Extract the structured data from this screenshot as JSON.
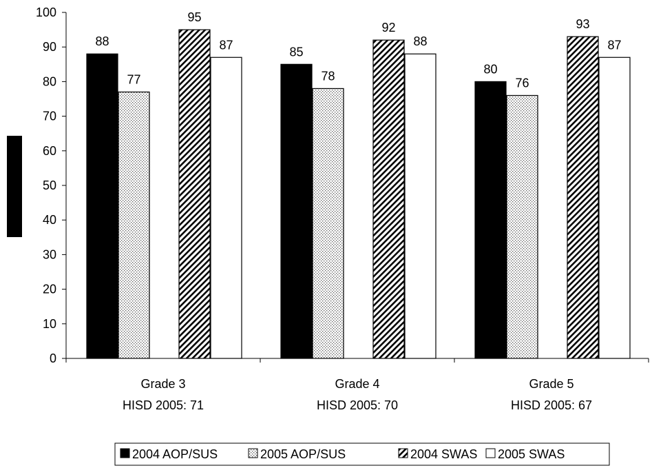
{
  "chart_data": {
    "type": "bar",
    "categories": [
      "Grade 3",
      "Grade 4",
      "Grade 5"
    ],
    "category_sublabels": [
      "HISD 2005: 71",
      "HISD 2005: 70",
      "HISD 2005: 67"
    ],
    "series": [
      {
        "name": "2004 AOP/SUS",
        "values": [
          88,
          85,
          80
        ],
        "fill": "solid",
        "color": "#000000"
      },
      {
        "name": "2005 AOP/SUS",
        "values": [
          77,
          78,
          76
        ],
        "fill": "dotted",
        "color": "#000000"
      },
      {
        "name": "2004 SWAS",
        "values": [
          95,
          92,
          93
        ],
        "fill": "diagonal-hatch",
        "color": "#000000"
      },
      {
        "name": "2005 SWAS",
        "values": [
          87,
          88,
          87
        ],
        "fill": "white",
        "color": "#000000"
      }
    ],
    "data_labels": [
      [
        "88",
        "85",
        "80"
      ],
      [
        "77",
        "78",
        "76"
      ],
      [
        "95",
        "92",
        "93"
      ],
      [
        "87",
        "88",
        "87"
      ]
    ],
    "yticks": [
      0,
      10,
      20,
      30,
      40,
      50,
      60,
      70,
      80,
      90,
      100
    ],
    "ytick_labels": [
      "0",
      "10",
      "20",
      "30",
      "40",
      "50",
      "60",
      "70",
      "80",
      "90",
      "100"
    ],
    "ylim": [
      0,
      100
    ],
    "ylabel": "",
    "xlabel": "",
    "title": "",
    "grid": false,
    "legend_position": "bottom"
  }
}
